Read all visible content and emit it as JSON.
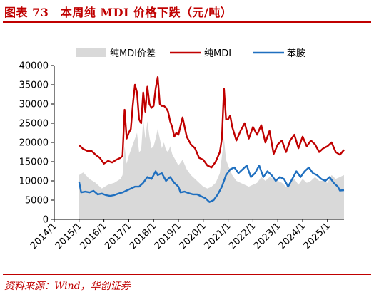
{
  "header": {
    "title": "图表 73　本周纯 MDI 价格下跌（元/吨）"
  },
  "footer": {
    "source": "资料来源：Wind，华创证券"
  },
  "colors": {
    "title": "#c00000",
    "spread": "#d9d9d9",
    "pure_mdi": "#c00000",
    "aniline": "#1f6fbf"
  },
  "chart_data": {
    "type": "area+line",
    "xlabel": "",
    "ylabel": "",
    "ylim": [
      0,
      40000
    ],
    "yticks": [
      0,
      5000,
      10000,
      15000,
      20000,
      25000,
      30000,
      35000,
      40000
    ],
    "xticks": [
      "2014/1",
      "2015/1",
      "2016/1",
      "2017/1",
      "2018/1",
      "2019/1",
      "2020/1",
      "2021/1",
      "2022/1",
      "2023/1",
      "2024/1",
      "2025/1"
    ],
    "xlim": [
      "2014/1",
      "2025/9"
    ],
    "grid": false,
    "legend_position": "top",
    "series": [
      {
        "name": "纯MDI价差",
        "kind": "area",
        "points": [
          [
            "2015/1",
            11500
          ],
          [
            "2015/3",
            12200
          ],
          [
            "2015/6",
            10500
          ],
          [
            "2015/9",
            9500
          ],
          [
            "2015/12",
            8000
          ],
          [
            "2016/3",
            9000
          ],
          [
            "2016/6",
            9500
          ],
          [
            "2016/9",
            10500
          ],
          [
            "2016/10",
            11500
          ],
          [
            "2016/11",
            19000
          ],
          [
            "2016/12",
            14500
          ],
          [
            "2017/1",
            16500
          ],
          [
            "2017/3",
            19500
          ],
          [
            "2017/5",
            22500
          ],
          [
            "2017/6",
            17500
          ],
          [
            "2017/7",
            18000
          ],
          [
            "2017/8",
            26000
          ],
          [
            "2017/9",
            21000
          ],
          [
            "2017/10",
            25500
          ],
          [
            "2017/11",
            21500
          ],
          [
            "2017/12",
            18500
          ],
          [
            "2018/1",
            19000
          ],
          [
            "2018/2",
            21000
          ],
          [
            "2018/3",
            23500
          ],
          [
            "2018/4",
            21000
          ],
          [
            "2018/5",
            18500
          ],
          [
            "2018/6",
            20000
          ],
          [
            "2018/7",
            18000
          ],
          [
            "2018/8",
            17500
          ],
          [
            "2018/9",
            19000
          ],
          [
            "2018/10",
            17000
          ],
          [
            "2018/11",
            16000
          ],
          [
            "2018/12",
            15000
          ],
          [
            "2019/1",
            14000
          ],
          [
            "2019/3",
            15500
          ],
          [
            "2019/5",
            13000
          ],
          [
            "2019/7",
            11500
          ],
          [
            "2019/9",
            10500
          ],
          [
            "2019/11",
            9500
          ],
          [
            "2020/1",
            8500
          ],
          [
            "2020/3",
            8000
          ],
          [
            "2020/5",
            8500
          ],
          [
            "2020/7",
            9500
          ],
          [
            "2020/9",
            12000
          ],
          [
            "2020/10",
            16500
          ],
          [
            "2020/11",
            21000
          ],
          [
            "2020/12",
            15500
          ],
          [
            "2021/1",
            14000
          ],
          [
            "2021/3",
            11500
          ],
          [
            "2021/5",
            10000
          ],
          [
            "2021/7",
            9500
          ],
          [
            "2021/9",
            9000
          ],
          [
            "2021/11",
            8500
          ],
          [
            "2022/1",
            9000
          ],
          [
            "2022/3",
            9500
          ],
          [
            "2022/5",
            11000
          ],
          [
            "2022/7",
            10000
          ],
          [
            "2022/9",
            11000
          ],
          [
            "2022/11",
            10500
          ],
          [
            "2023/1",
            10000
          ],
          [
            "2023/3",
            9500
          ],
          [
            "2023/5",
            8500
          ],
          [
            "2023/7",
            9500
          ],
          [
            "2023/9",
            10500
          ],
          [
            "2023/11",
            9000
          ],
          [
            "2024/1",
            10500
          ],
          [
            "2024/3",
            9500
          ],
          [
            "2024/5",
            10000
          ],
          [
            "2024/7",
            11000
          ],
          [
            "2024/9",
            10000
          ],
          [
            "2024/11",
            10000
          ],
          [
            "2025/1",
            9500
          ],
          [
            "2025/3",
            11500
          ],
          [
            "2025/5",
            10500
          ],
          [
            "2025/7",
            11000
          ],
          [
            "2025/9",
            11500
          ]
        ]
      },
      {
        "name": "纯MDI",
        "kind": "line",
        "points": [
          [
            "2015/1",
            19300
          ],
          [
            "2015/3",
            18300
          ],
          [
            "2015/5",
            17800
          ],
          [
            "2015/7",
            17800
          ],
          [
            "2015/9",
            16800
          ],
          [
            "2015/11",
            16000
          ],
          [
            "2016/1",
            14500
          ],
          [
            "2016/3",
            15200
          ],
          [
            "2016/5",
            14800
          ],
          [
            "2016/7",
            15500
          ],
          [
            "2016/9",
            16000
          ],
          [
            "2016/10",
            16500
          ],
          [
            "2016/11",
            28500
          ],
          [
            "2016/12",
            21000
          ],
          [
            "2017/1",
            22500
          ],
          [
            "2017/2",
            23500
          ],
          [
            "2017/3",
            30000
          ],
          [
            "2017/4",
            35000
          ],
          [
            "2017/5",
            33000
          ],
          [
            "2017/6",
            26000
          ],
          [
            "2017/7",
            25000
          ],
          [
            "2017/8",
            33000
          ],
          [
            "2017/9",
            28000
          ],
          [
            "2017/10",
            34500
          ],
          [
            "2017/11",
            30000
          ],
          [
            "2017/12",
            29000
          ],
          [
            "2018/1",
            29500
          ],
          [
            "2018/2",
            34000
          ],
          [
            "2018/3",
            37000
          ],
          [
            "2018/4",
            30000
          ],
          [
            "2018/5",
            29500
          ],
          [
            "2018/6",
            29500
          ],
          [
            "2018/7",
            29000
          ],
          [
            "2018/8",
            28000
          ],
          [
            "2018/9",
            25500
          ],
          [
            "2018/10",
            24000
          ],
          [
            "2018/11",
            21500
          ],
          [
            "2018/12",
            22500
          ],
          [
            "2019/1",
            22000
          ],
          [
            "2019/3",
            26500
          ],
          [
            "2019/5",
            21500
          ],
          [
            "2019/7",
            19500
          ],
          [
            "2019/9",
            18500
          ],
          [
            "2019/11",
            16000
          ],
          [
            "2020/1",
            15500
          ],
          [
            "2020/3",
            14000
          ],
          [
            "2020/5",
            13500
          ],
          [
            "2020/7",
            15000
          ],
          [
            "2020/9",
            17500
          ],
          [
            "2020/10",
            21000
          ],
          [
            "2020/11",
            34000
          ],
          [
            "2020/12",
            26000
          ],
          [
            "2021/1",
            26000
          ],
          [
            "2021/2",
            27000
          ],
          [
            "2021/3",
            24000
          ],
          [
            "2021/5",
            20500
          ],
          [
            "2021/7",
            23000
          ],
          [
            "2021/9",
            25000
          ],
          [
            "2021/11",
            21000
          ],
          [
            "2022/1",
            24000
          ],
          [
            "2022/3",
            22000
          ],
          [
            "2022/5",
            24500
          ],
          [
            "2022/7",
            20000
          ],
          [
            "2022/9",
            23000
          ],
          [
            "2022/11",
            17000
          ],
          [
            "2023/1",
            19500
          ],
          [
            "2023/3",
            20500
          ],
          [
            "2023/5",
            17500
          ],
          [
            "2023/7",
            20500
          ],
          [
            "2023/9",
            22000
          ],
          [
            "2023/11",
            18500
          ],
          [
            "2024/1",
            21500
          ],
          [
            "2024/3",
            19000
          ],
          [
            "2024/5",
            20500
          ],
          [
            "2024/7",
            19500
          ],
          [
            "2024/9",
            17500
          ],
          [
            "2024/11",
            18500
          ],
          [
            "2025/1",
            19000
          ],
          [
            "2025/3",
            20000
          ],
          [
            "2025/5",
            17500
          ],
          [
            "2025/7",
            16800
          ],
          [
            "2025/9",
            18100
          ]
        ]
      },
      {
        "name": "苯胺",
        "kind": "line",
        "points": [
          [
            "2015/1",
            9800
          ],
          [
            "2015/2",
            7000
          ],
          [
            "2015/4",
            7200
          ],
          [
            "2015/6",
            7000
          ],
          [
            "2015/8",
            7400
          ],
          [
            "2015/10",
            6500
          ],
          [
            "2015/12",
            6700
          ],
          [
            "2016/2",
            6300
          ],
          [
            "2016/4",
            6100
          ],
          [
            "2016/6",
            6300
          ],
          [
            "2016/8",
            6700
          ],
          [
            "2016/10",
            7000
          ],
          [
            "2016/12",
            7500
          ],
          [
            "2017/2",
            8000
          ],
          [
            "2017/4",
            8500
          ],
          [
            "2017/6",
            8500
          ],
          [
            "2017/8",
            9500
          ],
          [
            "2017/10",
            11000
          ],
          [
            "2017/12",
            10500
          ],
          [
            "2018/1",
            11500
          ],
          [
            "2018/2",
            12500
          ],
          [
            "2018/3",
            11500
          ],
          [
            "2018/5",
            12000
          ],
          [
            "2018/7",
            10000
          ],
          [
            "2018/9",
            11000
          ],
          [
            "2018/11",
            9500
          ],
          [
            "2019/1",
            8500
          ],
          [
            "2019/2",
            7000
          ],
          [
            "2019/4",
            7200
          ],
          [
            "2019/6",
            6800
          ],
          [
            "2019/8",
            6500
          ],
          [
            "2019/10",
            6500
          ],
          [
            "2019/12",
            6000
          ],
          [
            "2020/2",
            5500
          ],
          [
            "2020/4",
            4500
          ],
          [
            "2020/6",
            5000
          ],
          [
            "2020/8",
            6500
          ],
          [
            "2020/10",
            8500
          ],
          [
            "2020/12",
            11500
          ],
          [
            "2021/2",
            13000
          ],
          [
            "2021/4",
            13500
          ],
          [
            "2021/6",
            12000
          ],
          [
            "2021/8",
            13000
          ],
          [
            "2021/10",
            14000
          ],
          [
            "2021/12",
            11000
          ],
          [
            "2022/2",
            12000
          ],
          [
            "2022/4",
            14000
          ],
          [
            "2022/6",
            11000
          ],
          [
            "2022/8",
            12500
          ],
          [
            "2022/10",
            11500
          ],
          [
            "2022/12",
            10000
          ],
          [
            "2023/2",
            11000
          ],
          [
            "2023/4",
            10500
          ],
          [
            "2023/6",
            8500
          ],
          [
            "2023/8",
            10500
          ],
          [
            "2023/10",
            12500
          ],
          [
            "2023/12",
            11000
          ],
          [
            "2024/2",
            12500
          ],
          [
            "2024/4",
            13500
          ],
          [
            "2024/6",
            12000
          ],
          [
            "2024/8",
            11500
          ],
          [
            "2024/10",
            10500
          ],
          [
            "2024/12",
            10000
          ],
          [
            "2025/2",
            11000
          ],
          [
            "2025/4",
            9500
          ],
          [
            "2025/6",
            8500
          ],
          [
            "2025/7",
            7500
          ],
          [
            "2025/9",
            7600
          ]
        ]
      }
    ]
  }
}
